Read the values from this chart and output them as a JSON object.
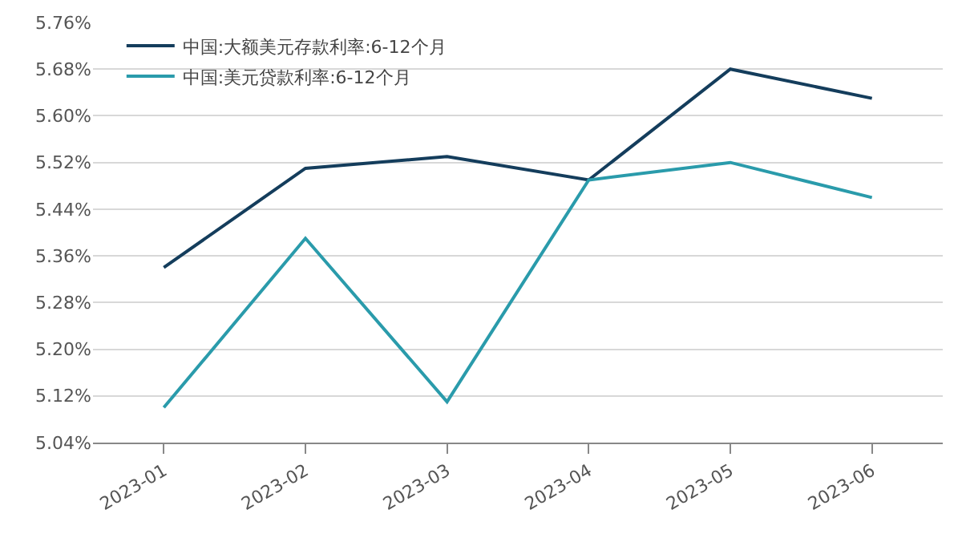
{
  "chart_data": {
    "type": "line",
    "categories": [
      "2023-01",
      "2023-02",
      "2023-03",
      "2023-04",
      "2023-05",
      "2023-06"
    ],
    "series": [
      {
        "name": "中国:大额美元存款利率:6-12个月",
        "color": "#143d5c",
        "values": [
          5.34,
          5.51,
          5.53,
          5.49,
          5.68,
          5.63
        ]
      },
      {
        "name": "中国:美元贷款利率:6-12个月",
        "color": "#2a9bab",
        "values": [
          5.1,
          5.39,
          5.11,
          5.49,
          5.52,
          5.46
        ]
      }
    ],
    "ylim": [
      5.04,
      5.76
    ],
    "yticks": [
      {
        "value": 5.04,
        "label": "5.04%"
      },
      {
        "value": 5.12,
        "label": "5.12%"
      },
      {
        "value": 5.2,
        "label": "5.20%"
      },
      {
        "value": 5.28,
        "label": "5.28%"
      },
      {
        "value": 5.36,
        "label": "5.36%"
      },
      {
        "value": 5.44,
        "label": "5.44%"
      },
      {
        "value": 5.52,
        "label": "5.52%"
      },
      {
        "value": 5.6,
        "label": "5.60%"
      },
      {
        "value": 5.68,
        "label": "5.68%"
      },
      {
        "value": 5.76,
        "label": "5.76%"
      }
    ],
    "grid": "y",
    "legend": "top left",
    "marker": "none",
    "line_style": "solid"
  }
}
